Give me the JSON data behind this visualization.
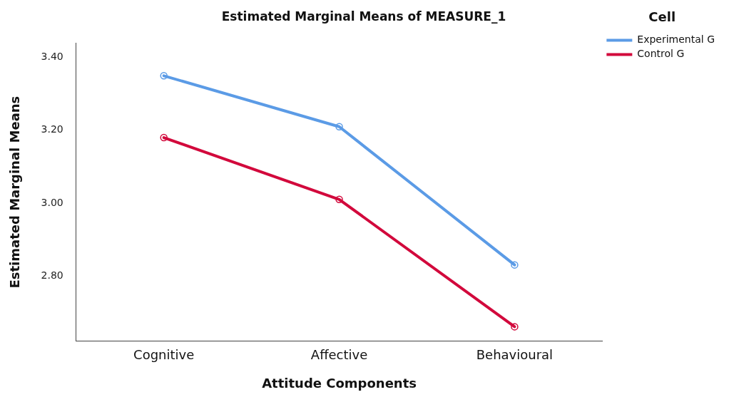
{
  "chart_data": {
    "type": "line",
    "title": "Estimated Marginal Means of MEASURE_1",
    "xlabel": "Attitude Components",
    "ylabel": "Estimated Marginal Means",
    "legend_title": "Cell",
    "categories": [
      "Cognitive",
      "Affective",
      "Behavioural"
    ],
    "series": [
      {
        "name": "Experimental G",
        "color": "#5b9be6",
        "values": [
          3.35,
          3.21,
          2.83
        ]
      },
      {
        "name": "Control G",
        "color": "#d2093c",
        "values": [
          3.18,
          3.01,
          2.66
        ]
      }
    ],
    "ylim": [
      2.62,
      3.44
    ],
    "yticks": [
      {
        "value": 2.8,
        "label": "2.80"
      },
      {
        "value": 3.0,
        "label": "3.00"
      },
      {
        "value": 3.2,
        "label": "3.20"
      },
      {
        "value": 3.4,
        "label": "3.40"
      }
    ],
    "grid": false,
    "legend": "right",
    "marker": "circle",
    "line_style": "solid"
  }
}
